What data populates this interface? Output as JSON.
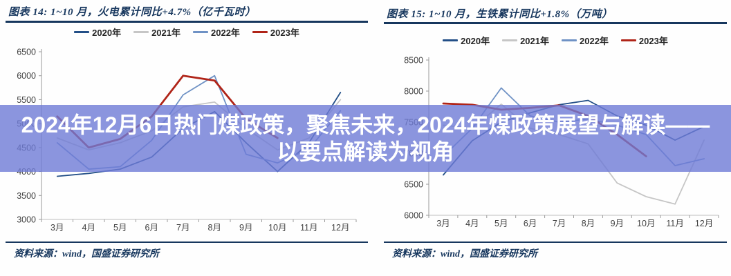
{
  "overlay": {
    "line1": "2024年12月6日热门煤政策，聚焦未来，2024年煤政策展望与解读——",
    "line2": "以要点解读为视角",
    "band_color": "rgba(110,123,214,0.8)",
    "text_color": "#FFFFFF"
  },
  "chart_data": [
    {
      "type": "line",
      "title": "图表 14:  1~10 月，火电累计同比+4.7%（亿千瓦时）",
      "source": "资料来源：wind，国盛证券研究所",
      "categories": [
        "3月",
        "4月",
        "5月",
        "6月",
        "7月",
        "8月",
        "9月",
        "10月",
        "11月",
        "12月"
      ],
      "ylim": [
        3000,
        6500
      ],
      "ystep": 500,
      "grid": false,
      "legend_position": "top",
      "series": [
        {
          "name": "2020年",
          "color": "#234F87",
          "width": 1.8,
          "values": [
            3900,
            3960,
            4050,
            4300,
            4900,
            5250,
            4600,
            4000,
            4600,
            5650
          ]
        },
        {
          "name": "2021年",
          "color": "#C6C6C6",
          "width": 1.8,
          "values": [
            4700,
            4450,
            4600,
            4850,
            5350,
            5450,
            4900,
            4450,
            4700,
            5500
          ]
        },
        {
          "name": "2022年",
          "color": "#6F92C5",
          "width": 1.8,
          "values": [
            4600,
            4050,
            4100,
            4650,
            5600,
            6000,
            4360,
            4180,
            4470,
            5270
          ]
        },
        {
          "name": "2023年",
          "color": "#B02418",
          "width": 2.8,
          "values": [
            5150,
            4500,
            4680,
            5150,
            6000,
            5900,
            5100,
            4700,
            null,
            null
          ]
        }
      ]
    },
    {
      "type": "line",
      "title": "图表 15:  1~10 月，生铁累计同比+1.8%（万吨）",
      "source": "资料来源：wind，国盛证券研究所",
      "categories": [
        "3月",
        "4月",
        "5月",
        "6月",
        "7月",
        "8月",
        "9月",
        "10月",
        "11月",
        "12月"
      ],
      "ylim": [
        6000,
        8500
      ],
      "ystep": 500,
      "grid": false,
      "legend_position": "top",
      "series": [
        {
          "name": "2020年",
          "color": "#234F87",
          "width": 1.8,
          "values": [
            6650,
            7200,
            7500,
            7650,
            7780,
            7850,
            7600,
            7450,
            7210,
            7430
          ]
        },
        {
          "name": "2021年",
          "color": "#C6C6C6",
          "width": 1.8,
          "values": [
            7450,
            7400,
            7790,
            7400,
            7300,
            7150,
            6520,
            6300,
            6180,
            7210
          ]
        },
        {
          "name": "2022年",
          "color": "#6F92C5",
          "width": 1.8,
          "values": [
            6950,
            7400,
            8050,
            7600,
            7500,
            7550,
            7450,
            7300,
            6800,
            6910
          ]
        },
        {
          "name": "2023年",
          "color": "#B02418",
          "width": 2.8,
          "values": [
            7800,
            7780,
            7700,
            7730,
            7770,
            7600,
            7300,
            6950,
            null,
            null
          ]
        }
      ]
    }
  ]
}
